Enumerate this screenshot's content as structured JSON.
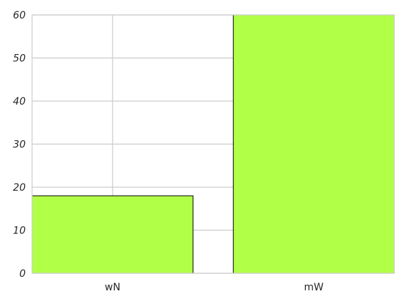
{
  "chart_data": {
    "type": "bar",
    "title": "",
    "xlabel": "",
    "ylabel": "",
    "categories": [
      "wN",
      "mW"
    ],
    "values": [
      18,
      60
    ],
    "ylim": [
      0,
      60
    ],
    "yticks": [
      0,
      10,
      20,
      30,
      40,
      50,
      60
    ],
    "grid": true,
    "legend": "none",
    "colors": {
      "bar": "#b2ff48",
      "edge": "#000000",
      "grid": "#cccccc",
      "text": "#262626",
      "background": "#ffffff"
    }
  }
}
